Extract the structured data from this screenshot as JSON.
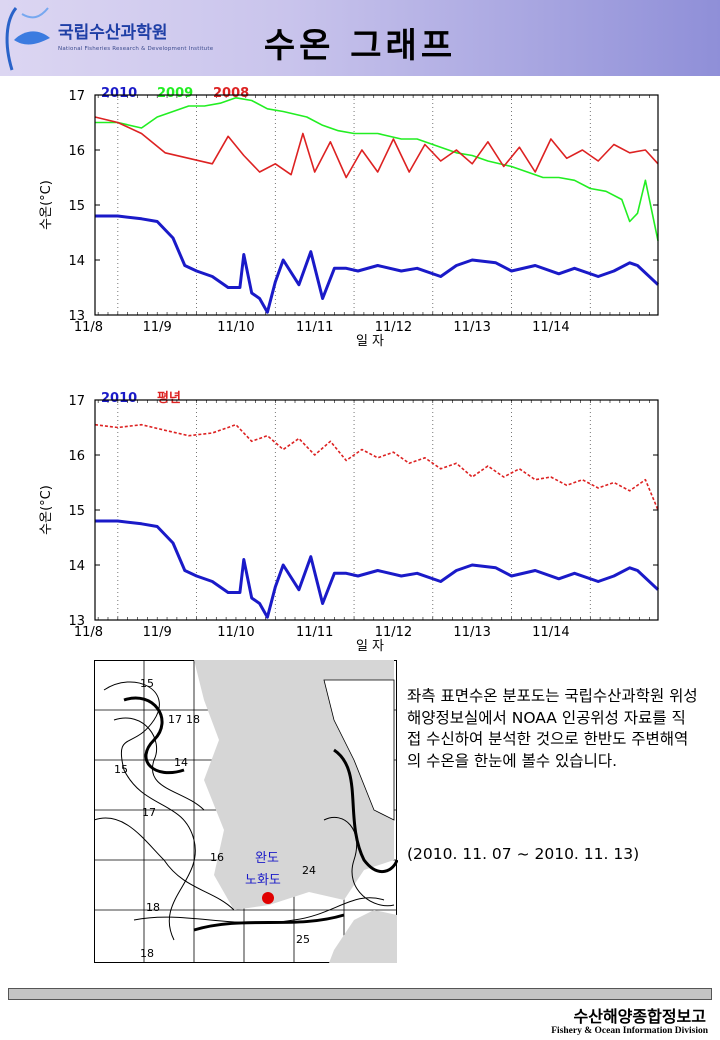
{
  "header": {
    "logo_text": "국립수산과학원",
    "logo_subtitle": "National Fisheries Research & Development Institute",
    "title": "수온 그래프"
  },
  "chart_data": [
    {
      "type": "line",
      "ylabel": "수온(°C)",
      "xlabel": "일 자",
      "ylim": [
        13,
        17
      ],
      "yticks": [
        13,
        14,
        15,
        16,
        17
      ],
      "xlim": [
        7.71,
        14.86
      ],
      "x_tick_labels": [
        "11/8",
        "11/9",
        "11/10",
        "11/11",
        "11/12",
        "11/13",
        "11/14"
      ],
      "grid": "vertical dotted at day boundaries",
      "legend_placement": "top-left",
      "series": [
        {
          "name": "2010",
          "color": "#1a1ac8",
          "x": [
            7.71,
            8.0,
            8.3,
            8.5,
            8.7,
            8.85,
            9.0,
            9.2,
            9.4,
            9.55,
            9.6,
            9.7,
            9.8,
            9.9,
            10.0,
            10.1,
            10.3,
            10.45,
            10.6,
            10.75,
            10.9,
            11.05,
            11.3,
            11.6,
            11.8,
            12.1,
            12.3,
            12.5,
            12.8,
            13.0,
            13.3,
            13.6,
            13.8,
            14.1,
            14.3,
            14.5,
            14.6,
            14.86
          ],
          "y": [
            14.8,
            14.8,
            14.75,
            14.7,
            14.4,
            13.9,
            13.8,
            13.7,
            13.5,
            13.5,
            14.1,
            13.4,
            13.3,
            13.05,
            13.6,
            14.0,
            13.55,
            14.15,
            13.3,
            13.85,
            13.85,
            13.8,
            13.9,
            13.8,
            13.85,
            13.7,
            13.9,
            14.0,
            13.95,
            13.8,
            13.9,
            13.75,
            13.85,
            13.7,
            13.8,
            13.95,
            13.9,
            13.55
          ]
        },
        {
          "name": "2009",
          "color": "#22ee22",
          "x": [
            7.71,
            8.0,
            8.3,
            8.5,
            8.7,
            8.9,
            9.1,
            9.3,
            9.5,
            9.7,
            9.9,
            10.1,
            10.4,
            10.6,
            10.8,
            11.0,
            11.3,
            11.6,
            11.8,
            12.0,
            12.3,
            12.5,
            12.7,
            13.0,
            13.2,
            13.4,
            13.6,
            13.8,
            14.0,
            14.2,
            14.4,
            14.5,
            14.6,
            14.7,
            14.86
          ],
          "y": [
            16.5,
            16.5,
            16.4,
            16.6,
            16.7,
            16.8,
            16.8,
            16.85,
            16.95,
            16.9,
            16.75,
            16.7,
            16.6,
            16.45,
            16.35,
            16.3,
            16.3,
            16.2,
            16.2,
            16.1,
            15.95,
            15.9,
            15.8,
            15.7,
            15.6,
            15.5,
            15.5,
            15.45,
            15.3,
            15.25,
            15.1,
            14.7,
            14.85,
            15.45,
            14.35
          ]
        },
        {
          "name": "2008",
          "color": "#dd2222",
          "x": [
            7.71,
            8.0,
            8.3,
            8.6,
            8.9,
            9.2,
            9.4,
            9.6,
            9.8,
            10.0,
            10.2,
            10.35,
            10.5,
            10.7,
            10.9,
            11.1,
            11.3,
            11.5,
            11.7,
            11.9,
            12.1,
            12.3,
            12.5,
            12.7,
            12.9,
            13.1,
            13.3,
            13.5,
            13.7,
            13.9,
            14.1,
            14.3,
            14.5,
            14.7,
            14.86
          ],
          "y": [
            16.6,
            16.5,
            16.3,
            15.95,
            15.85,
            15.75,
            16.25,
            15.9,
            15.6,
            15.75,
            15.55,
            16.3,
            15.6,
            16.15,
            15.5,
            16.0,
            15.6,
            16.2,
            15.6,
            16.1,
            15.8,
            16.0,
            15.75,
            16.15,
            15.7,
            16.05,
            15.6,
            16.2,
            15.85,
            16.0,
            15.8,
            16.1,
            15.95,
            16.0,
            15.75
          ]
        }
      ]
    },
    {
      "type": "line",
      "ylabel": "수온(°C)",
      "xlabel": "일 자",
      "ylim": [
        13,
        17
      ],
      "yticks": [
        13,
        14,
        15,
        16,
        17
      ],
      "xlim": [
        7.71,
        14.86
      ],
      "x_tick_labels": [
        "11/8",
        "11/9",
        "11/10",
        "11/11",
        "11/12",
        "11/13",
        "11/14"
      ],
      "grid": "vertical dotted at day boundaries",
      "legend_placement": "top-left",
      "series": [
        {
          "name": "2010",
          "color": "#1a1ac8",
          "x": [
            7.71,
            8.0,
            8.3,
            8.5,
            8.7,
            8.85,
            9.0,
            9.2,
            9.4,
            9.55,
            9.6,
            9.7,
            9.8,
            9.9,
            10.0,
            10.1,
            10.3,
            10.45,
            10.6,
            10.75,
            10.9,
            11.05,
            11.3,
            11.6,
            11.8,
            12.1,
            12.3,
            12.5,
            12.8,
            13.0,
            13.3,
            13.6,
            13.8,
            14.1,
            14.3,
            14.5,
            14.6,
            14.86
          ],
          "y": [
            14.8,
            14.8,
            14.75,
            14.7,
            14.4,
            13.9,
            13.8,
            13.7,
            13.5,
            13.5,
            14.1,
            13.4,
            13.3,
            13.05,
            13.6,
            14.0,
            13.55,
            14.15,
            13.3,
            13.85,
            13.85,
            13.8,
            13.9,
            13.8,
            13.85,
            13.7,
            13.9,
            14.0,
            13.95,
            13.8,
            13.9,
            13.75,
            13.85,
            13.7,
            13.8,
            13.95,
            13.9,
            13.55
          ]
        },
        {
          "name": "평년",
          "color": "#dd2222",
          "x": [
            7.71,
            8.0,
            8.3,
            8.6,
            8.9,
            9.2,
            9.5,
            9.7,
            9.9,
            10.1,
            10.3,
            10.5,
            10.7,
            10.9,
            11.1,
            11.3,
            11.5,
            11.7,
            11.9,
            12.1,
            12.3,
            12.5,
            12.7,
            12.9,
            13.1,
            13.3,
            13.5,
            13.7,
            13.9,
            14.1,
            14.3,
            14.5,
            14.7,
            14.86
          ],
          "y": [
            16.55,
            16.5,
            16.55,
            16.45,
            16.35,
            16.4,
            16.55,
            16.25,
            16.35,
            16.1,
            16.3,
            16.0,
            16.25,
            15.9,
            16.1,
            15.95,
            16.05,
            15.85,
            15.95,
            15.75,
            15.85,
            15.6,
            15.8,
            15.6,
            15.75,
            15.55,
            15.6,
            15.45,
            15.55,
            15.4,
            15.5,
            15.35,
            15.55,
            15.0
          ]
        }
      ]
    }
  ],
  "map": {
    "labels": [
      "15",
      "17",
      "18",
      "14",
      "15",
      "17",
      "16",
      "18",
      "18",
      "24",
      "25"
    ],
    "place_1": "완도",
    "place_2": "노화도"
  },
  "description": "좌측 표면수온 분포도는 국립수산과학원 위성해양정보실에서 NOAA 인공위성 자료를 직접 수신하여 분석한 것으로  한반도 주변해역의 수온을 한눈에 볼수 있습니다.",
  "date_range": "(2010. 11. 07 ~ 2010. 11. 13)",
  "footer": {
    "korean": "수산해양종합정보고",
    "english": "Fishery & Ocean Information Division"
  }
}
